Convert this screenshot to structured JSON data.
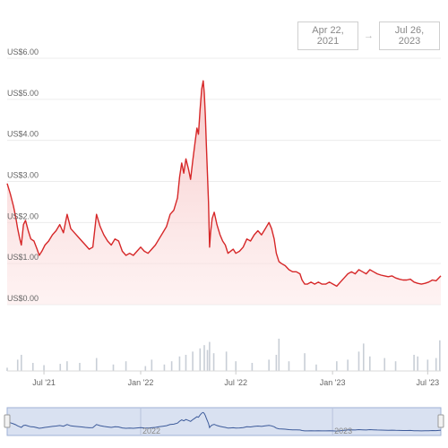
{
  "range_selector": {
    "from": "Apr 22, 2021",
    "arrow": "→",
    "to": "Jul 26, 2023"
  },
  "colors": {
    "price_line": "#d62728",
    "area_fill": "#f7d6d6",
    "volume_bar": "#c8ced6",
    "navigator_fill": "#d5def0",
    "navigator_line": "#3c5a9a",
    "grid": "#ececec"
  },
  "chart_data": {
    "type": "line",
    "title": "",
    "ylabel": "",
    "xlabel": "",
    "ylim": [
      0,
      6
    ],
    "y_ticks": [
      "US$0.00",
      "US$1.00",
      "US$2.00",
      "US$3.00",
      "US$4.00",
      "US$5.00",
      "US$6.00"
    ],
    "x_ticks": [
      "Jul '21",
      "Jan '22",
      "Jul '22",
      "Jan '23",
      "Jul '23"
    ],
    "navigator_labels": [
      "2022",
      "2023"
    ],
    "grid": true,
    "series": [
      {
        "values": [
          [
            "2021-04-22",
            2.95
          ],
          [
            "2021-04-28",
            2.7
          ],
          [
            "2021-05-04",
            2.4
          ],
          [
            "2021-05-08",
            2.15
          ],
          [
            "2021-05-12",
            1.85
          ],
          [
            "2021-05-16",
            1.6
          ],
          [
            "2021-05-19",
            1.45
          ],
          [
            "2021-05-23",
            1.95
          ],
          [
            "2021-05-27",
            2.05
          ],
          [
            "2021-06-01",
            1.8
          ],
          [
            "2021-06-06",
            1.6
          ],
          [
            "2021-06-12",
            1.55
          ],
          [
            "2021-06-18",
            1.35
          ],
          [
            "2021-06-22",
            1.2
          ],
          [
            "2021-06-27",
            1.3
          ],
          [
            "2021-07-03",
            1.45
          ],
          [
            "2021-07-10",
            1.55
          ],
          [
            "2021-07-17",
            1.7
          ],
          [
            "2021-07-24",
            1.8
          ],
          [
            "2021-07-31",
            1.95
          ],
          [
            "2021-08-07",
            1.75
          ],
          [
            "2021-08-14",
            2.2
          ],
          [
            "2021-08-21",
            1.85
          ],
          [
            "2021-08-28",
            1.75
          ],
          [
            "2021-09-04",
            1.65
          ],
          [
            "2021-09-11",
            1.55
          ],
          [
            "2021-09-18",
            1.45
          ],
          [
            "2021-09-25",
            1.35
          ],
          [
            "2021-10-02",
            1.4
          ],
          [
            "2021-10-09",
            2.2
          ],
          [
            "2021-10-16",
            1.9
          ],
          [
            "2021-10-23",
            1.7
          ],
          [
            "2021-10-30",
            1.55
          ],
          [
            "2021-11-06",
            1.45
          ],
          [
            "2021-11-13",
            1.6
          ],
          [
            "2021-11-20",
            1.55
          ],
          [
            "2021-11-27",
            1.3
          ],
          [
            "2021-12-04",
            1.2
          ],
          [
            "2021-12-11",
            1.25
          ],
          [
            "2021-12-18",
            1.2
          ],
          [
            "2021-12-25",
            1.3
          ],
          [
            "2022-01-01",
            1.4
          ],
          [
            "2022-01-08",
            1.3
          ],
          [
            "2022-01-15",
            1.25
          ],
          [
            "2022-01-22",
            1.35
          ],
          [
            "2022-01-29",
            1.45
          ],
          [
            "2022-02-05",
            1.6
          ],
          [
            "2022-02-12",
            1.75
          ],
          [
            "2022-02-19",
            1.9
          ],
          [
            "2022-02-26",
            2.2
          ],
          [
            "2022-03-05",
            2.3
          ],
          [
            "2022-03-12",
            2.6
          ],
          [
            "2022-03-16",
            3.1
          ],
          [
            "2022-03-20",
            3.45
          ],
          [
            "2022-03-24",
            3.2
          ],
          [
            "2022-03-28",
            3.55
          ],
          [
            "2022-04-02",
            3.3
          ],
          [
            "2022-04-06",
            3.05
          ],
          [
            "2022-04-10",
            3.5
          ],
          [
            "2022-04-14",
            3.9
          ],
          [
            "2022-04-18",
            4.3
          ],
          [
            "2022-04-21",
            4.15
          ],
          [
            "2022-04-24",
            4.75
          ],
          [
            "2022-04-27",
            5.25
          ],
          [
            "2022-04-30",
            5.45
          ],
          [
            "2022-05-02",
            5.15
          ],
          [
            "2022-05-04",
            4.6
          ],
          [
            "2022-05-06",
            3.9
          ],
          [
            "2022-05-08",
            3.2
          ],
          [
            "2022-05-10",
            2.5
          ],
          [
            "2022-05-12",
            1.4
          ],
          [
            "2022-05-14",
            1.75
          ],
          [
            "2022-05-17",
            2.1
          ],
          [
            "2022-05-21",
            2.25
          ],
          [
            "2022-05-26",
            1.95
          ],
          [
            "2022-06-01",
            1.7
          ],
          [
            "2022-06-06",
            1.55
          ],
          [
            "2022-06-11",
            1.45
          ],
          [
            "2022-06-16",
            1.25
          ],
          [
            "2022-06-21",
            1.3
          ],
          [
            "2022-06-26",
            1.35
          ],
          [
            "2022-07-01",
            1.25
          ],
          [
            "2022-07-08",
            1.3
          ],
          [
            "2022-07-15",
            1.4
          ],
          [
            "2022-07-22",
            1.6
          ],
          [
            "2022-07-29",
            1.55
          ],
          [
            "2022-08-05",
            1.7
          ],
          [
            "2022-08-12",
            1.8
          ],
          [
            "2022-08-19",
            1.7
          ],
          [
            "2022-08-26",
            1.85
          ],
          [
            "2022-09-02",
            2.0
          ],
          [
            "2022-09-07",
            1.85
          ],
          [
            "2022-09-12",
            1.6
          ],
          [
            "2022-09-16",
            1.25
          ],
          [
            "2022-09-21",
            1.05
          ],
          [
            "2022-09-26",
            1.0
          ],
          [
            "2022-10-03",
            0.95
          ],
          [
            "2022-10-10",
            0.85
          ],
          [
            "2022-10-17",
            0.8
          ],
          [
            "2022-10-24",
            0.8
          ],
          [
            "2022-10-31",
            0.75
          ],
          [
            "2022-11-04",
            0.6
          ],
          [
            "2022-11-09",
            0.5
          ],
          [
            "2022-11-14",
            0.5
          ],
          [
            "2022-11-21",
            0.55
          ],
          [
            "2022-11-28",
            0.5
          ],
          [
            "2022-12-05",
            0.55
          ],
          [
            "2022-12-12",
            0.5
          ],
          [
            "2022-12-19",
            0.5
          ],
          [
            "2022-12-26",
            0.55
          ],
          [
            "2023-01-02",
            0.5
          ],
          [
            "2023-01-09",
            0.45
          ],
          [
            "2023-01-16",
            0.55
          ],
          [
            "2023-01-23",
            0.65
          ],
          [
            "2023-01-30",
            0.75
          ],
          [
            "2023-02-06",
            0.8
          ],
          [
            "2023-02-13",
            0.75
          ],
          [
            "2023-02-20",
            0.85
          ],
          [
            "2023-02-27",
            0.8
          ],
          [
            "2023-03-06",
            0.75
          ],
          [
            "2023-03-13",
            0.85
          ],
          [
            "2023-03-20",
            0.8
          ],
          [
            "2023-03-27",
            0.75
          ],
          [
            "2023-04-03",
            0.72
          ],
          [
            "2023-04-10",
            0.7
          ],
          [
            "2023-04-17",
            0.68
          ],
          [
            "2023-04-24",
            0.7
          ],
          [
            "2023-05-01",
            0.65
          ],
          [
            "2023-05-08",
            0.62
          ],
          [
            "2023-05-15",
            0.6
          ],
          [
            "2023-05-22",
            0.6
          ],
          [
            "2023-05-29",
            0.62
          ],
          [
            "2023-06-05",
            0.55
          ],
          [
            "2023-06-12",
            0.52
          ],
          [
            "2023-06-19",
            0.5
          ],
          [
            "2023-06-26",
            0.52
          ],
          [
            "2023-07-03",
            0.55
          ],
          [
            "2023-07-10",
            0.6
          ],
          [
            "2023-07-17",
            0.58
          ],
          [
            "2023-07-26",
            0.7
          ]
        ]
      }
    ],
    "volume": [
      [
        "2021-04-22",
        0.1
      ],
      [
        "2021-05-12",
        0.35
      ],
      [
        "2021-05-19",
        0.5
      ],
      [
        "2021-06-10",
        0.25
      ],
      [
        "2021-07-01",
        0.18
      ],
      [
        "2021-08-01",
        0.22
      ],
      [
        "2021-08-14",
        0.3
      ],
      [
        "2021-09-07",
        0.25
      ],
      [
        "2021-10-09",
        0.4
      ],
      [
        "2021-11-10",
        0.2
      ],
      [
        "2021-12-04",
        0.3
      ],
      [
        "2022-01-10",
        0.15
      ],
      [
        "2022-01-22",
        0.35
      ],
      [
        "2022-02-15",
        0.2
      ],
      [
        "2022-03-01",
        0.3
      ],
      [
        "2022-03-16",
        0.45
      ],
      [
        "2022-03-28",
        0.5
      ],
      [
        "2022-04-10",
        0.6
      ],
      [
        "2022-04-24",
        0.7
      ],
      [
        "2022-05-02",
        0.8
      ],
      [
        "2022-05-08",
        0.65
      ],
      [
        "2022-05-12",
        0.9
      ],
      [
        "2022-05-20",
        0.55
      ],
      [
        "2022-06-13",
        0.6
      ],
      [
        "2022-07-01",
        0.3
      ],
      [
        "2022-08-01",
        0.25
      ],
      [
        "2022-09-02",
        0.35
      ],
      [
        "2022-09-16",
        0.5
      ],
      [
        "2022-09-21",
        1.0
      ],
      [
        "2022-10-10",
        0.3
      ],
      [
        "2022-11-09",
        0.55
      ],
      [
        "2022-12-01",
        0.2
      ],
      [
        "2023-01-09",
        0.3
      ],
      [
        "2023-01-30",
        0.35
      ],
      [
        "2023-02-20",
        0.6
      ],
      [
        "2023-03-01",
        0.85
      ],
      [
        "2023-03-13",
        0.45
      ],
      [
        "2023-04-10",
        0.4
      ],
      [
        "2023-05-01",
        0.3
      ],
      [
        "2023-06-05",
        0.5
      ],
      [
        "2023-06-12",
        0.45
      ],
      [
        "2023-07-01",
        0.35
      ],
      [
        "2023-07-17",
        0.4
      ],
      [
        "2023-07-24",
        0.95
      ]
    ]
  }
}
